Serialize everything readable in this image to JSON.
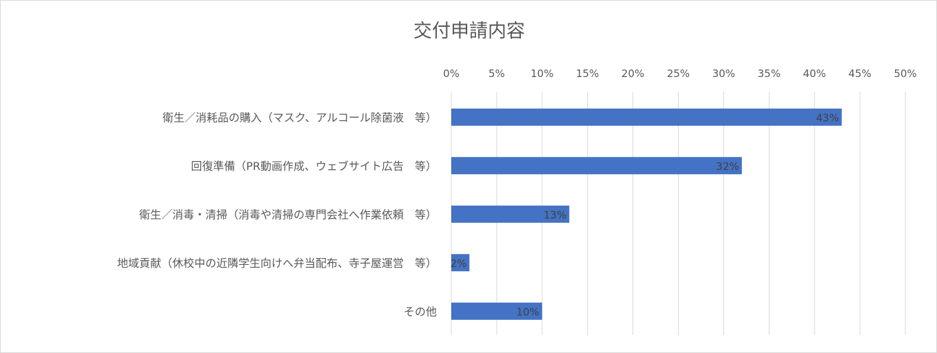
{
  "chart_data": {
    "type": "bar",
    "orientation": "horizontal",
    "title": "交付申請内容",
    "categories": [
      "衛生／消耗品の購入（マスク、アルコール除菌液　等）",
      "回復準備（PR動画作成、ウェブサイト広告　等）",
      "衛生／消毒・清掃（消毒や清掃の専門会社へ作業依頼　等）",
      "地域貢献（休校中の近隣学生向けへ弁当配布、寺子屋運営　等）",
      "その他"
    ],
    "values": [
      43,
      32,
      13,
      2,
      10
    ],
    "data_labels": [
      "43%",
      "32%",
      "13%",
      "2%",
      "10%"
    ],
    "xlim": [
      0,
      50
    ],
    "x_ticks": [
      "0%",
      "5%",
      "10%",
      "15%",
      "20%",
      "25%",
      "30%",
      "35%",
      "40%",
      "45%",
      "50%"
    ],
    "x_axis_position": "top",
    "grid": true,
    "legend": "none",
    "bar_color": "#4472C4",
    "grid_color": "#d9d9d9"
  }
}
